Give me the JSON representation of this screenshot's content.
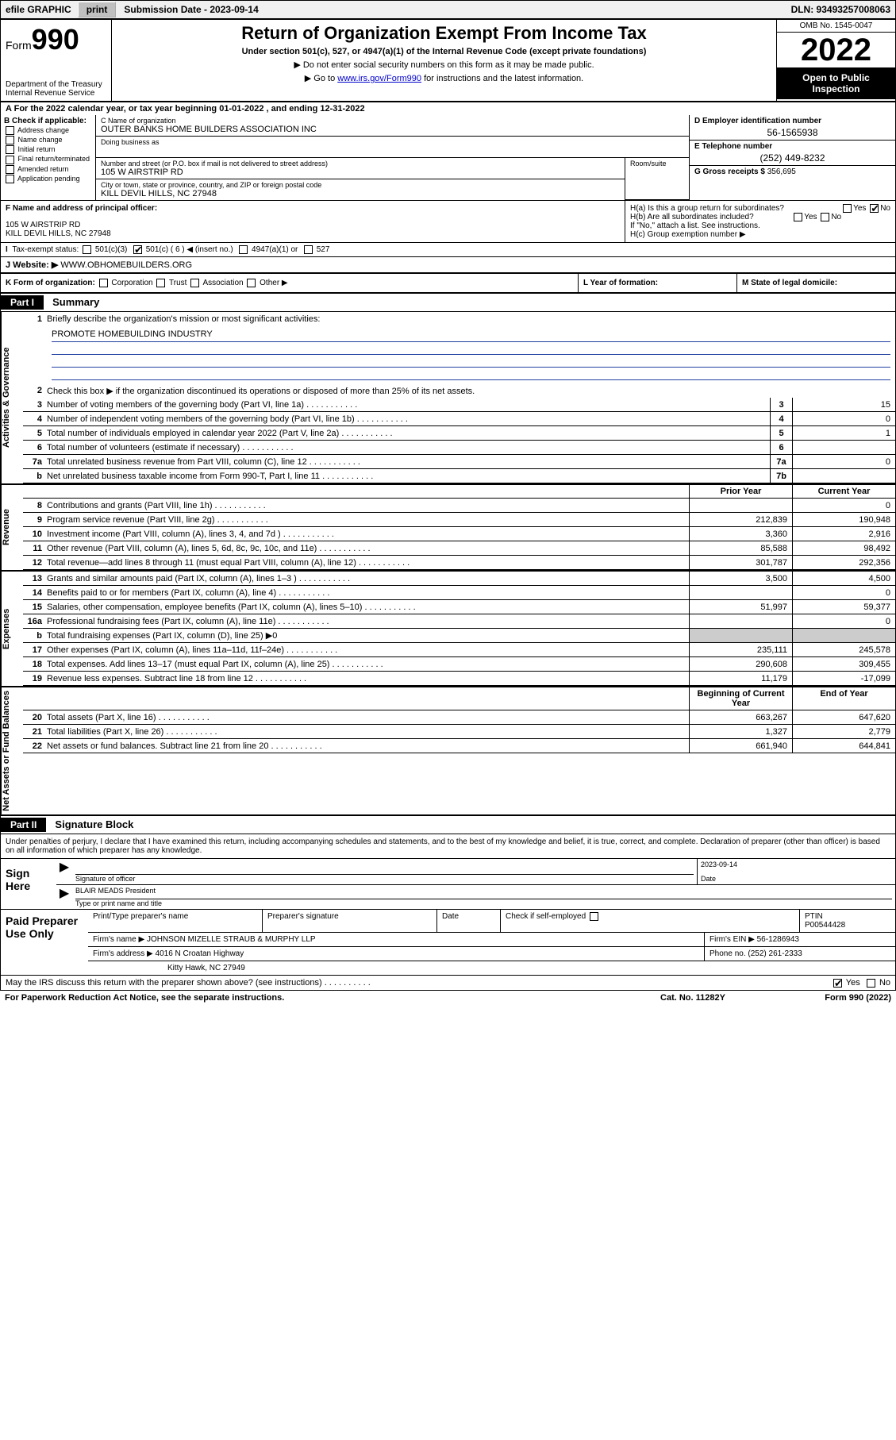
{
  "topbar": {
    "efile_label": "efile GRAPHIC",
    "print_btn": "print",
    "submission_label": "Submission Date - 2023-09-14",
    "dln": "DLN: 93493257008063"
  },
  "header": {
    "form_word": "Form",
    "form_num": "990",
    "dept": "Department of the Treasury",
    "irs": "Internal Revenue Service",
    "title": "Return of Organization Exempt From Income Tax",
    "subtitle": "Under section 501(c), 527, or 4947(a)(1) of the Internal Revenue Code (except private foundations)",
    "note1": "▶ Do not enter social security numbers on this form as it may be made public.",
    "note2_pre": "▶ Go to ",
    "note2_link": "www.irs.gov/Form990",
    "note2_post": " for instructions and the latest information.",
    "omb": "OMB No. 1545-0047",
    "year": "2022",
    "open": "Open to Public Inspection"
  },
  "taxyear": "For the 2022 calendar year, or tax year beginning 01-01-2022   , and ending 12-31-2022",
  "B": {
    "label": "B Check if applicable:",
    "opts": [
      "Address change",
      "Name change",
      "Initial return",
      "Final return/terminated",
      "Amended return",
      "Application pending"
    ]
  },
  "C": {
    "name_lbl": "C Name of organization",
    "name": "OUTER BANKS HOME BUILDERS ASSOCIATION INC",
    "dba_lbl": "Doing business as",
    "addr_lbl": "Number and street (or P.O. box if mail is not delivered to street address)",
    "room_lbl": "Room/suite",
    "addr": "105 W AIRSTRIP RD",
    "city_lbl": "City or town, state or province, country, and ZIP or foreign postal code",
    "city": "KILL DEVIL HILLS, NC  27948"
  },
  "D": {
    "ein_lbl": "D Employer identification number",
    "ein": "56-1565938",
    "phone_lbl": "E Telephone number",
    "phone": "(252) 449-8232",
    "gross_lbl": "G Gross receipts $",
    "gross": "356,695"
  },
  "F": {
    "lbl": "F Name and address of principal officer:",
    "addr1": "105 W AIRSTRIP RD",
    "addr2": "KILL DEVIL HILLS, NC  27948"
  },
  "H": {
    "a": "H(a)  Is this a group return for subordinates?",
    "b": "H(b)  Are all subordinates included?",
    "b_note": "If \"No,\" attach a list. See instructions.",
    "c": "H(c)  Group exemption number ▶"
  },
  "I": {
    "lbl": "Tax-exempt status:",
    "insert": "( 6 ) ◀ (insert no.)"
  },
  "J": {
    "lbl": "J   Website: ▶",
    "val": "WWW.OBHOMEBUILDERS.ORG"
  },
  "K": {
    "lbl": "K Form of organization:",
    "opts": [
      "Corporation",
      "Trust",
      "Association",
      "Other ▶"
    ]
  },
  "L": {
    "lbl": "L Year of formation:"
  },
  "M": {
    "lbl": "M State of legal domicile:"
  },
  "part1": {
    "hdr": "Part I",
    "title": "Summary",
    "q1": "Briefly describe the organization's mission or most significant activities:",
    "mission": "PROMOTE HOMEBUILDING INDUSTRY",
    "q2": "Check this box ▶        if the organization discontinued its operations or disposed of more than 25% of its net assets."
  },
  "gov_lines": [
    {
      "n": "3",
      "t": "Number of voting members of the governing body (Part VI, line 1a)",
      "box": "3",
      "v": "15"
    },
    {
      "n": "4",
      "t": "Number of independent voting members of the governing body (Part VI, line 1b)",
      "box": "4",
      "v": "0"
    },
    {
      "n": "5",
      "t": "Total number of individuals employed in calendar year 2022 (Part V, line 2a)",
      "box": "5",
      "v": "1"
    },
    {
      "n": "6",
      "t": "Total number of volunteers (estimate if necessary)",
      "box": "6",
      "v": ""
    },
    {
      "n": "7a",
      "t": "Total unrelated business revenue from Part VIII, column (C), line 12",
      "box": "7a",
      "v": "0"
    },
    {
      "n": "b",
      "t": "Net unrelated business taxable income from Form 990-T, Part I, line 11",
      "box": "7b",
      "v": ""
    }
  ],
  "col_hdrs": {
    "prior": "Prior Year",
    "current": "Current Year"
  },
  "rev_lines": [
    {
      "n": "8",
      "t": "Contributions and grants (Part VIII, line 1h)",
      "p": "",
      "c": "0"
    },
    {
      "n": "9",
      "t": "Program service revenue (Part VIII, line 2g)",
      "p": "212,839",
      "c": "190,948"
    },
    {
      "n": "10",
      "t": "Investment income (Part VIII, column (A), lines 3, 4, and 7d )",
      "p": "3,360",
      "c": "2,916"
    },
    {
      "n": "11",
      "t": "Other revenue (Part VIII, column (A), lines 5, 6d, 8c, 9c, 10c, and 11e)",
      "p": "85,588",
      "c": "98,492"
    },
    {
      "n": "12",
      "t": "Total revenue—add lines 8 through 11 (must equal Part VIII, column (A), line 12)",
      "p": "301,787",
      "c": "292,356"
    }
  ],
  "exp_lines": [
    {
      "n": "13",
      "t": "Grants and similar amounts paid (Part IX, column (A), lines 1–3 )",
      "p": "3,500",
      "c": "4,500"
    },
    {
      "n": "14",
      "t": "Benefits paid to or for members (Part IX, column (A), line 4)",
      "p": "",
      "c": "0"
    },
    {
      "n": "15",
      "t": "Salaries, other compensation, employee benefits (Part IX, column (A), lines 5–10)",
      "p": "51,997",
      "c": "59,377"
    },
    {
      "n": "16a",
      "t": "Professional fundraising fees (Part IX, column (A), line 11e)",
      "p": "",
      "c": "0"
    },
    {
      "n": "b",
      "t": "Total fundraising expenses (Part IX, column (D), line 25) ▶0",
      "p": "—",
      "c": "—"
    },
    {
      "n": "17",
      "t": "Other expenses (Part IX, column (A), lines 11a–11d, 11f–24e)",
      "p": "235,111",
      "c": "245,578"
    },
    {
      "n": "18",
      "t": "Total expenses. Add lines 13–17 (must equal Part IX, column (A), line 25)",
      "p": "290,608",
      "c": "309,455"
    },
    {
      "n": "19",
      "t": "Revenue less expenses. Subtract line 18 from line 12",
      "p": "11,179",
      "c": "-17,099"
    }
  ],
  "net_hdrs": {
    "beg": "Beginning of Current Year",
    "end": "End of Year"
  },
  "net_lines": [
    {
      "n": "20",
      "t": "Total assets (Part X, line 16)",
      "p": "663,267",
      "c": "647,620"
    },
    {
      "n": "21",
      "t": "Total liabilities (Part X, line 26)",
      "p": "1,327",
      "c": "2,779"
    },
    {
      "n": "22",
      "t": "Net assets or fund balances. Subtract line 21 from line 20",
      "p": "661,940",
      "c": "644,841"
    }
  ],
  "vtabs": {
    "gov": "Activities & Governance",
    "rev": "Revenue",
    "exp": "Expenses",
    "net": "Net Assets or Fund Balances"
  },
  "part2": {
    "hdr": "Part II",
    "title": "Signature Block",
    "decl": "Under penalties of perjury, I declare that I have examined this return, including accompanying schedules and statements, and to the best of my knowledge and belief, it is true, correct, and complete. Declaration of preparer (other than officer) is based on all information of which preparer has any knowledge."
  },
  "sign": {
    "label": "Sign Here",
    "sig_lbl": "Signature of officer",
    "date_lbl": "Date",
    "date": "2023-09-14",
    "name": "BLAIR MEADS President",
    "name_lbl": "Type or print name and title"
  },
  "prep": {
    "label": "Paid Preparer Use Only",
    "name_lbl": "Print/Type preparer's name",
    "sig_lbl": "Preparer's signature",
    "date_lbl": "Date",
    "check_lbl": "Check        if self-employed",
    "ptin_lbl": "PTIN",
    "ptin": "P00544428",
    "firm_lbl": "Firm's name   ▶",
    "firm": "JOHNSON MIZELLE STRAUB & MURPHY LLP",
    "ein_lbl": "Firm's EIN ▶",
    "ein": "56-1286943",
    "addr_lbl": "Firm's address ▶",
    "addr1": "4016 N Croatan Highway",
    "addr2": "Kitty Hawk, NC  27949",
    "phone_lbl": "Phone no.",
    "phone": "(252) 261-2333"
  },
  "discuss": {
    "q": "May the IRS discuss this return with the preparer shown above? (see instructions)",
    "yes": "Yes",
    "no": "No"
  },
  "footer": {
    "pra": "For Paperwork Reduction Act Notice, see the separate instructions.",
    "cat": "Cat. No. 11282Y",
    "form": "Form 990 (2022)"
  }
}
